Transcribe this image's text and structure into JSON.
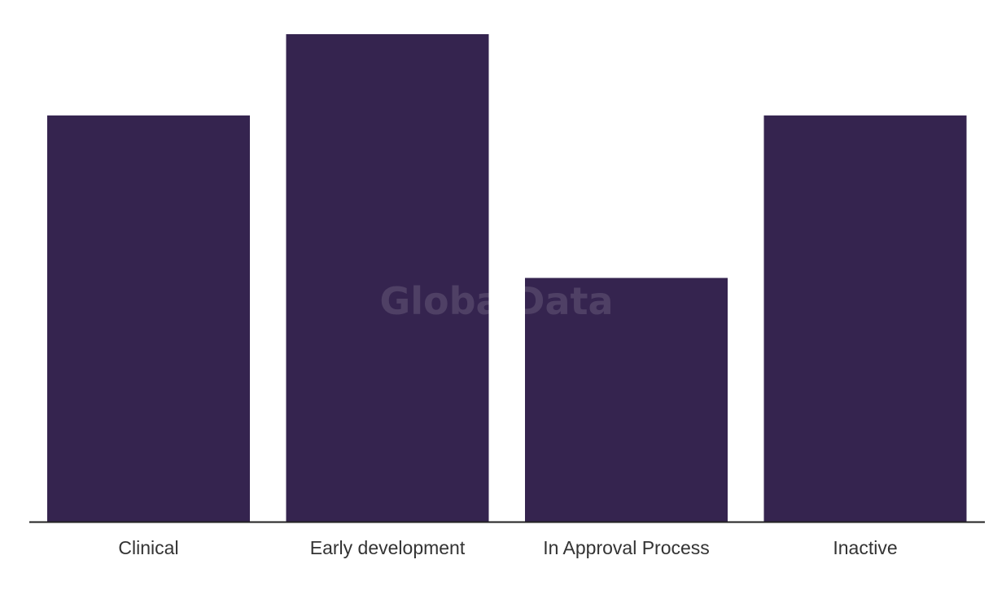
{
  "chart_data": {
    "type": "bar",
    "categories": [
      "Clinical",
      "Early development",
      "In Approval Process",
      "Inactive"
    ],
    "values": [
      5,
      6,
      3,
      5
    ],
    "title": "",
    "xlabel": "",
    "ylabel": "",
    "ylim": [
      0,
      6
    ],
    "grid": false,
    "legend": "none",
    "bar_color": "#35244f",
    "axis_color": "#222222"
  },
  "watermark": "GlobalData"
}
